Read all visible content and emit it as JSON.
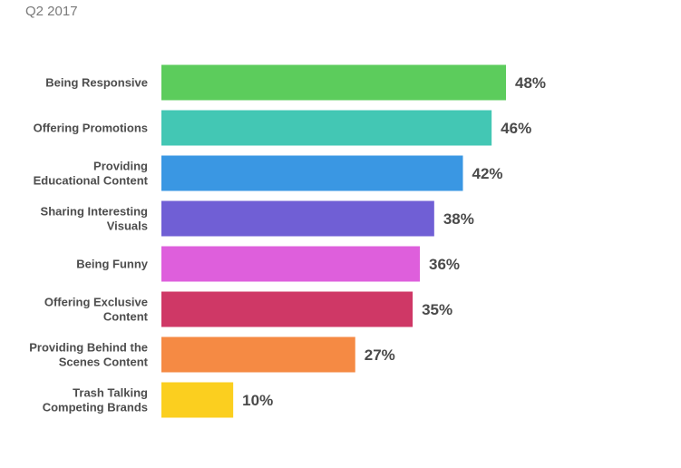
{
  "header": {
    "subtitle": "Q2 2017"
  },
  "chart_data": {
    "type": "bar",
    "orientation": "horizontal",
    "subtitle": "Q2 2017",
    "categories": [
      [
        "Being Responsive"
      ],
      [
        "Offering Promotions"
      ],
      [
        "Providing",
        "Educational Content"
      ],
      [
        "Sharing Interesting",
        "Visuals"
      ],
      [
        "Being Funny"
      ],
      [
        "Offering Exclusive",
        "Content"
      ],
      [
        "Providing Behind the",
        "Scenes Content"
      ],
      [
        "Trash Talking",
        "Competing Brands"
      ]
    ],
    "values": [
      48,
      46,
      42,
      38,
      36,
      35,
      27,
      10
    ],
    "value_labels": [
      "48%",
      "46%",
      "42%",
      "38%",
      "36%",
      "35%",
      "27%",
      "10%"
    ],
    "colors": [
      "#5ccc5c",
      "#43c7b4",
      "#3a97e3",
      "#705fd5",
      "#de5fdc",
      "#cf3866",
      "#f58a44",
      "#fbcf1f"
    ],
    "xlim": [
      0,
      100
    ],
    "grid": false,
    "legend": "none"
  }
}
